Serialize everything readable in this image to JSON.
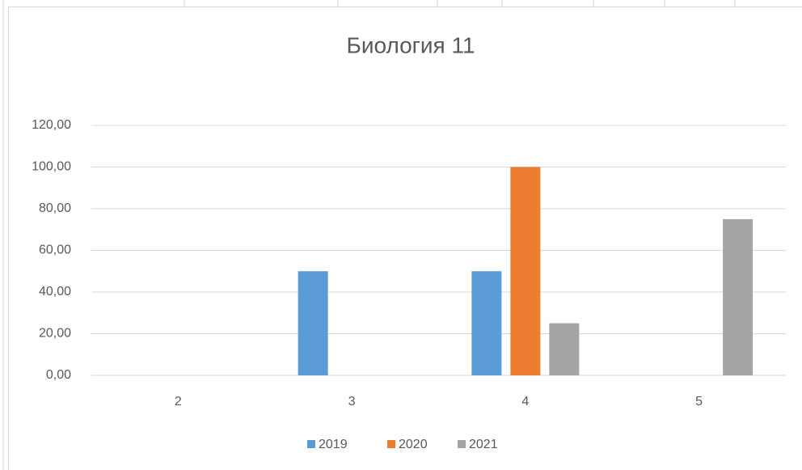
{
  "chart_data": {
    "type": "bar",
    "title": "Биология 11",
    "categories": [
      "2",
      "3",
      "4",
      "5"
    ],
    "series": [
      {
        "name": "2019",
        "color": "#5b9bd5",
        "values": [
          0,
          50,
          50,
          0
        ]
      },
      {
        "name": "2020",
        "color": "#ed7d31",
        "values": [
          0,
          0,
          100,
          0
        ]
      },
      {
        "name": "2021",
        "color": "#a5a5a5",
        "values": [
          0,
          0,
          25,
          75
        ]
      }
    ],
    "ylim": [
      0,
      120
    ],
    "yticks": [
      {
        "value": 0,
        "label": "0,00"
      },
      {
        "value": 20,
        "label": "20,00"
      },
      {
        "value": 40,
        "label": "40,00"
      },
      {
        "value": 60,
        "label": "60,00"
      },
      {
        "value": 80,
        "label": "80,00"
      },
      {
        "value": 100,
        "label": "100,00"
      },
      {
        "value": 120,
        "label": "120,00"
      }
    ],
    "grid": true,
    "legend": "bottom"
  }
}
